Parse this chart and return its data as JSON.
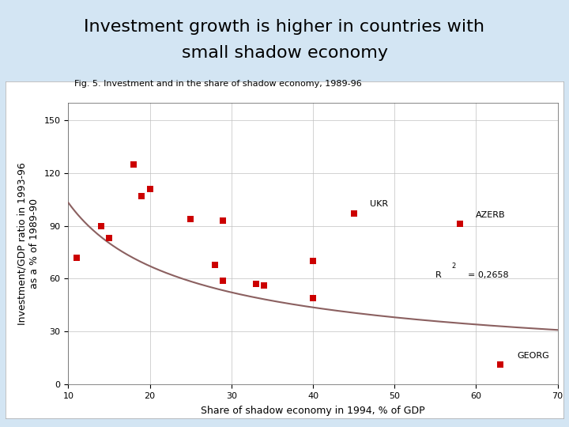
{
  "title_line1": "Investment growth is higher in countries with",
  "title_line2": "small shadow economy",
  "fig_note": "Fig. 5. Investment and in the share of shadow economy, 1989-96",
  "xlabel": "Share of shadow economy in 1994, % of GDP",
  "ylabel": "Investment/GDP ratio in 1993-96\nas a % of 1989-90",
  "xlim": [
    10,
    70
  ],
  "ylim": [
    0,
    160
  ],
  "xticks": [
    10,
    20,
    30,
    40,
    50,
    60,
    70
  ],
  "yticks": [
    0,
    30,
    60,
    90,
    120,
    150
  ],
  "scatter_x": [
    11,
    14,
    15,
    18,
    19,
    20,
    25,
    28,
    29,
    29,
    33,
    34,
    40,
    40,
    45,
    58,
    63
  ],
  "scatter_y": [
    72,
    90,
    83,
    125,
    107,
    111,
    94,
    68,
    93,
    59,
    57,
    56,
    70,
    49,
    97,
    91,
    11
  ],
  "labeled_points": {
    "UKR": [
      45,
      97
    ],
    "AZERB": [
      58,
      91
    ],
    "GEORG": [
      63,
      11
    ]
  },
  "r2_val": "= 0,2658",
  "r2_x": 55,
  "r2_y": 62,
  "marker_color": "#cc0000",
  "curve_color": "#8b6060",
  "outer_bg_color": "#d3e5f3",
  "plot_bg_color": "#ffffff",
  "title_fontsize": 16,
  "fig_note_fontsize": 8,
  "label_fontsize": 8,
  "axis_label_fontsize": 9,
  "tick_fontsize": 8,
  "curve_a": 430,
  "curve_b": -0.62
}
